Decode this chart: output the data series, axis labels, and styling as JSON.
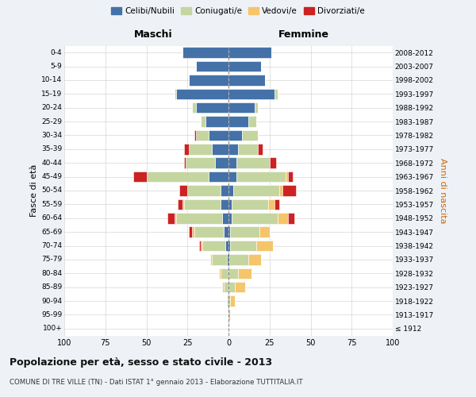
{
  "age_groups": [
    "100+",
    "95-99",
    "90-94",
    "85-89",
    "80-84",
    "75-79",
    "70-74",
    "65-69",
    "60-64",
    "55-59",
    "50-54",
    "45-49",
    "40-44",
    "35-39",
    "30-34",
    "25-29",
    "20-24",
    "15-19",
    "10-14",
    "5-9",
    "0-4"
  ],
  "birth_years": [
    "≤ 1912",
    "1913-1917",
    "1918-1922",
    "1923-1927",
    "1928-1932",
    "1933-1937",
    "1938-1942",
    "1943-1947",
    "1948-1952",
    "1953-1957",
    "1958-1962",
    "1963-1967",
    "1968-1972",
    "1973-1977",
    "1978-1982",
    "1983-1987",
    "1988-1992",
    "1993-1997",
    "1998-2002",
    "2003-2007",
    "2008-2012"
  ],
  "colors": {
    "celibe": "#4472A8",
    "coniugato": "#C5D5A0",
    "vedovo": "#F5C56A",
    "divorziato": "#CC2222"
  },
  "males": {
    "celibe": [
      0,
      0,
      0,
      0,
      0,
      1,
      2,
      3,
      4,
      5,
      5,
      12,
      8,
      10,
      12,
      14,
      20,
      32,
      24,
      20,
      28
    ],
    "coniugato": [
      0,
      0,
      1,
      3,
      5,
      9,
      14,
      18,
      28,
      22,
      20,
      38,
      18,
      14,
      8,
      3,
      2,
      1,
      0,
      0,
      0
    ],
    "vedovo": [
      0,
      0,
      0,
      1,
      1,
      1,
      1,
      1,
      1,
      1,
      0,
      0,
      0,
      0,
      0,
      0,
      0,
      0,
      0,
      0,
      0
    ],
    "divorziato": [
      0,
      0,
      0,
      0,
      0,
      0,
      1,
      2,
      4,
      3,
      5,
      8,
      1,
      3,
      1,
      0,
      0,
      0,
      0,
      0,
      0
    ]
  },
  "females": {
    "nubile": [
      0,
      0,
      0,
      0,
      0,
      0,
      1,
      1,
      2,
      2,
      3,
      5,
      5,
      6,
      8,
      12,
      16,
      28,
      22,
      20,
      26
    ],
    "coniugata": [
      0,
      0,
      1,
      4,
      6,
      12,
      16,
      18,
      28,
      22,
      28,
      30,
      20,
      12,
      10,
      5,
      2,
      2,
      0,
      0,
      0
    ],
    "vedova": [
      0,
      1,
      3,
      6,
      8,
      8,
      10,
      6,
      6,
      4,
      2,
      1,
      0,
      0,
      0,
      0,
      0,
      0,
      0,
      0,
      0
    ],
    "divorziata": [
      0,
      0,
      0,
      0,
      0,
      0,
      0,
      0,
      4,
      3,
      8,
      3,
      4,
      3,
      0,
      0,
      0,
      0,
      0,
      0,
      0
    ]
  },
  "xlim": 100,
  "title": "Popolazione per età, sesso e stato civile - 2013",
  "subtitle": "COMUNE DI TRE VILLE (TN) - Dati ISTAT 1° gennaio 2013 - Elaborazione TUTTITALIA.IT",
  "xlabel_left": "Maschi",
  "xlabel_right": "Femmine",
  "ylabel_left": "Fasce di età",
  "ylabel_right": "Anni di nascita",
  "bg_color": "#eef2f7",
  "plot_bg": "#ffffff"
}
